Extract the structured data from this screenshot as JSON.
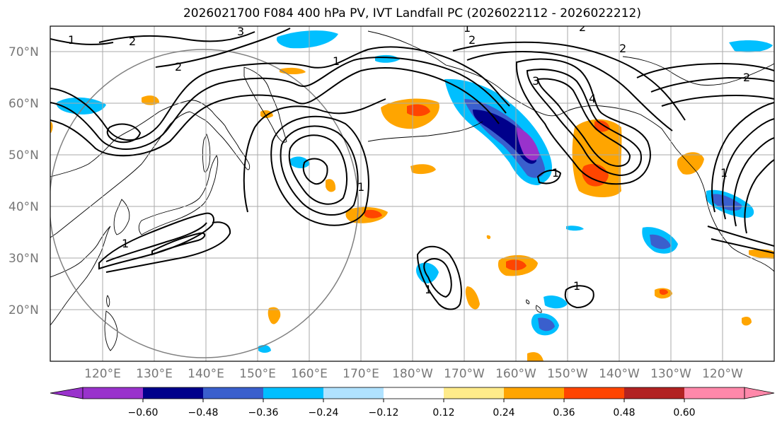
{
  "title": "2026021700 F084 400 hPa PV, IVT Landfall PC (2026022112 - 2026022212)",
  "lat_labels": [
    "70°N",
    "60°N",
    "50°N",
    "40°N",
    "30°N",
    "20°N"
  ],
  "lon_labels": [
    "120°E",
    "130°E",
    "140°E",
    "150°E",
    "160°E",
    "170°E",
    "180°W",
    "170°W",
    "160°W",
    "150°W",
    "140°W",
    "130°W",
    "120°W"
  ],
  "colorbar": {
    "tick_labels": [
      "−0.60",
      "−0.48",
      "−0.36",
      "−0.24",
      "−0.12",
      "0.12",
      "0.24",
      "0.36",
      "0.48",
      "0.60"
    ],
    "colors": [
      "#9932cc",
      "#00008b",
      "#3a5fcd",
      "#00bfff",
      "#b0e2ff",
      "#ffffff",
      "#ffeb8a",
      "#ffa500",
      "#ff4500",
      "#b22222",
      "#ff88aa"
    ]
  },
  "contour_labels": [
    "1",
    "2",
    "2",
    "2",
    "3",
    "1",
    "2",
    "2",
    "2",
    "3",
    "4",
    "1",
    "1",
    "1",
    "1",
    "1",
    "1",
    "1"
  ],
  "colors": {
    "coast": "#000000",
    "grid": "#aaaaaa",
    "circle": "#808080"
  }
}
